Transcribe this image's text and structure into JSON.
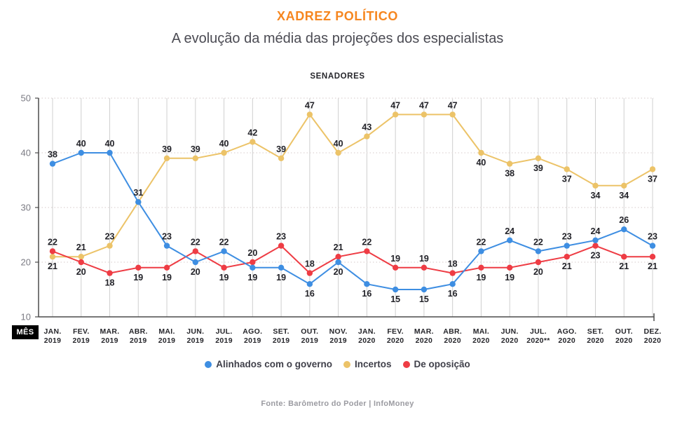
{
  "header": {
    "title": "XADREZ POLÍTICO",
    "subtitle": "A evolução da média das projeções dos especialistas"
  },
  "footer": {
    "source": "Fonte: Barômetro do Poder | InfoMoney"
  },
  "colors": {
    "accent_orange": "#f6861f",
    "blue": "#3e8ee2",
    "yellow": "#ecc368",
    "red": "#ee3c44",
    "grid_vertical": "#cfcfcf",
    "grid_horizontal": "#e4dcdc",
    "axis": "#4b4b4b",
    "tick_label": "#7b7b83",
    "data_label": "#222228"
  },
  "chart_data": {
    "type": "line",
    "title": "SENADORES",
    "xlabel_badge": "MÊS",
    "ylim": [
      10,
      50
    ],
    "yticks": [
      10,
      20,
      30,
      40,
      50
    ],
    "grid": "vertical solid per month; horizontal dotted at yticks",
    "legend_position": "bottom",
    "categories": [
      "JAN. 2019",
      "FEV. 2019",
      "MAR. 2019",
      "ABR. 2019",
      "MAI. 2019",
      "JUN. 2019",
      "JUL. 2019",
      "AGO. 2019",
      "SET. 2019",
      "OUT. 2019",
      "NOV. 2019",
      "JAN. 2020",
      "FEV. 2020",
      "MAR. 2020",
      "ABR. 2020",
      "MAI. 2020",
      "JUN. 2020",
      "JUL. 2020**",
      "AGO. 2020",
      "SET. 2020",
      "OUT. 2020",
      "DEZ. 2020"
    ],
    "series": [
      {
        "name": "Alinhados com o governo",
        "color": "#3e8ee2",
        "values": [
          38,
          40,
          40,
          31,
          23,
          20,
          22,
          19,
          19,
          16,
          20,
          16,
          15,
          15,
          16,
          22,
          24,
          22,
          23,
          24,
          26,
          23
        ],
        "label_pos": [
          "above",
          "above",
          "above",
          "above",
          "above",
          "below",
          "above",
          "below",
          "below",
          "below",
          "below",
          "below",
          "below",
          "below",
          "below",
          "above",
          "above",
          "above",
          "above",
          "above",
          "above",
          "above"
        ]
      },
      {
        "name": "Incertos",
        "color": "#ecc368",
        "values": [
          21,
          21,
          23,
          31,
          39,
          39,
          40,
          42,
          39,
          47,
          40,
          43,
          47,
          47,
          47,
          40,
          38,
          39,
          37,
          34,
          34,
          37
        ],
        "label_pos": [
          "below",
          "above",
          "above",
          "hidden",
          "above",
          "above",
          "above",
          "above",
          "above",
          "above",
          "above",
          "above",
          "above",
          "above",
          "above",
          "below",
          "below",
          "below",
          "below",
          "below",
          "below",
          "below"
        ]
      },
      {
        "name": "De oposição",
        "color": "#ee3c44",
        "values": [
          22,
          20,
          18,
          19,
          19,
          22,
          19,
          20,
          23,
          18,
          21,
          22,
          19,
          19,
          18,
          19,
          19,
          20,
          21,
          23,
          21,
          21
        ],
        "label_pos": [
          "above",
          "below",
          "below",
          "below",
          "below",
          "above",
          "below",
          "above",
          "above",
          "above",
          "above",
          "above",
          "above",
          "above",
          "above",
          "below",
          "below",
          "below",
          "below",
          "below",
          "below",
          "below"
        ]
      }
    ]
  }
}
